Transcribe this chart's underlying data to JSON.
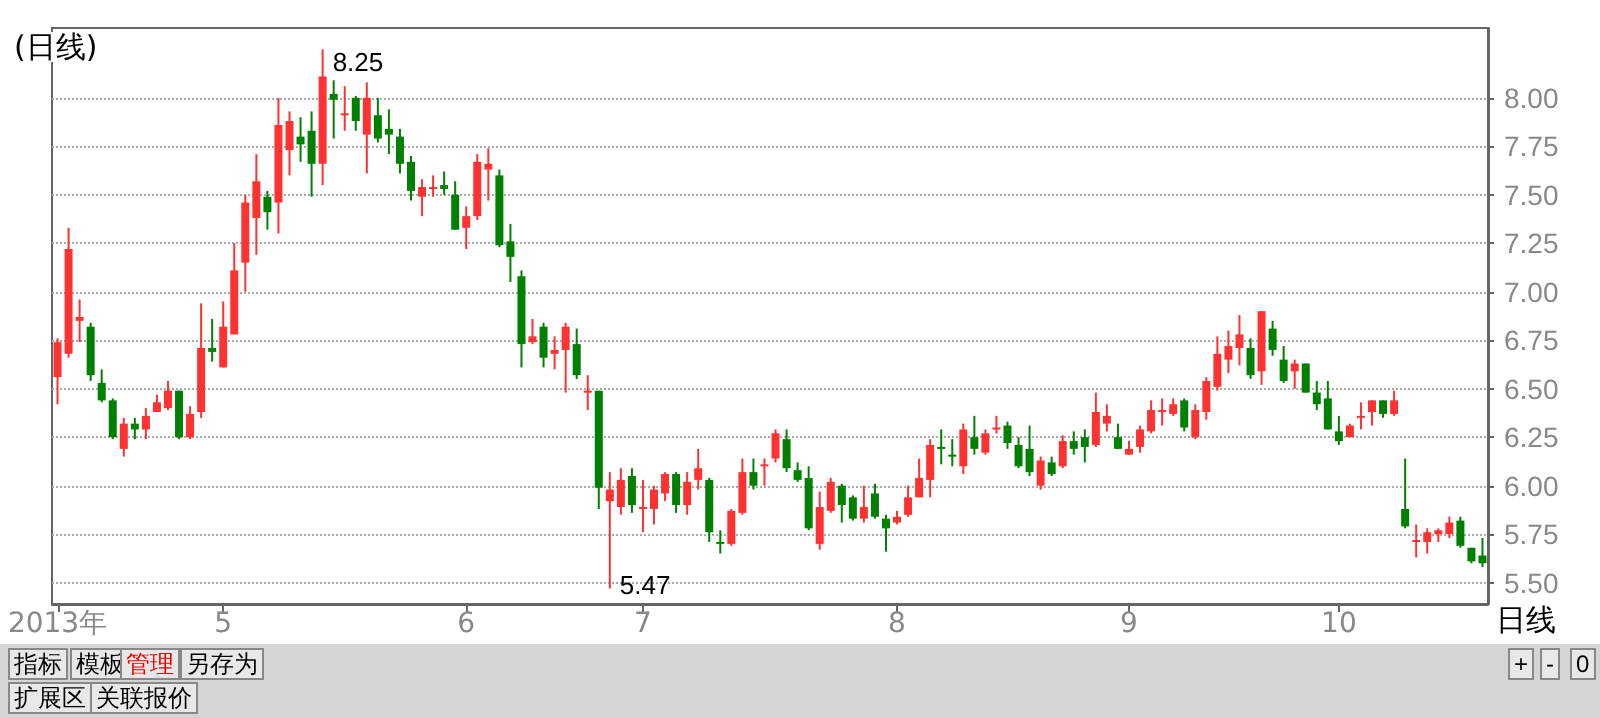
{
  "chart_data": {
    "type": "candlestick",
    "title": "(日线)",
    "categories": [
      "2013年",
      null,
      null,
      null,
      null,
      null,
      null,
      null,
      null,
      null,
      null,
      null,
      null,
      null,
      null,
      "5",
      null,
      null,
      null,
      null,
      null,
      null,
      null,
      null,
      null,
      null,
      null,
      null,
      null,
      null,
      null,
      null,
      null,
      null,
      null,
      null,
      null,
      "6",
      null,
      null,
      null,
      null,
      null,
      null,
      null,
      null,
      null,
      null,
      null,
      null,
      null,
      null,
      null,
      "7",
      null,
      null,
      null,
      null,
      null,
      null,
      null,
      null,
      null,
      null,
      null,
      null,
      null,
      null,
      null,
      null,
      null,
      null,
      null,
      null,
      null,
      null,
      "8",
      null,
      null,
      null,
      null,
      null,
      null,
      null,
      null,
      null,
      null,
      null,
      null,
      null,
      null,
      null,
      null,
      null,
      null,
      null,
      null,
      "9",
      null,
      null,
      null,
      null,
      null,
      null,
      null,
      null,
      null,
      null,
      null,
      null,
      null,
      null,
      null,
      null,
      null,
      null,
      "10",
      null,
      null,
      null,
      null,
      null,
      null,
      null,
      null,
      null,
      null,
      null,
      null,
      null
    ],
    "ohlc": [
      [
        6.56,
        6.76,
        6.42,
        6.74
      ],
      [
        6.68,
        7.33,
        6.66,
        7.22
      ],
      [
        6.85,
        6.96,
        6.74,
        6.87
      ],
      [
        6.82,
        6.84,
        6.54,
        6.57
      ],
      [
        6.53,
        6.6,
        6.43,
        6.44
      ],
      [
        6.44,
        6.45,
        6.24,
        6.25
      ],
      [
        6.19,
        6.35,
        6.15,
        6.32
      ],
      [
        6.32,
        6.35,
        6.24,
        6.29
      ],
      [
        6.29,
        6.4,
        6.24,
        6.36
      ],
      [
        6.38,
        6.47,
        6.38,
        6.43
      ],
      [
        6.4,
        6.54,
        6.39,
        6.49
      ],
      [
        6.49,
        6.49,
        6.24,
        6.25
      ],
      [
        6.25,
        6.41,
        6.24,
        6.37
      ],
      [
        6.38,
        6.94,
        6.35,
        6.71
      ],
      [
        6.71,
        6.86,
        6.64,
        6.69
      ],
      [
        6.61,
        6.95,
        6.61,
        6.82
      ],
      [
        6.78,
        7.25,
        6.78,
        7.11
      ],
      [
        7.15,
        7.5,
        7.0,
        7.46
      ],
      [
        7.38,
        7.71,
        7.19,
        7.57
      ],
      [
        7.49,
        7.52,
        7.32,
        7.41
      ],
      [
        7.46,
        8.0,
        7.3,
        7.86
      ],
      [
        7.73,
        7.93,
        7.6,
        7.88
      ],
      [
        7.8,
        7.9,
        7.67,
        7.76
      ],
      [
        7.83,
        7.93,
        7.49,
        7.66
      ],
      [
        7.66,
        8.25,
        7.55,
        8.11
      ],
      [
        8.02,
        8.09,
        7.79,
        7.99
      ],
      [
        7.91,
        8.06,
        7.83,
        7.92
      ],
      [
        8.0,
        8.01,
        7.83,
        7.88
      ],
      [
        7.81,
        8.08,
        7.61,
        8.0
      ],
      [
        7.91,
        8.0,
        7.77,
        7.79
      ],
      [
        7.84,
        7.94,
        7.71,
        7.81
      ],
      [
        7.8,
        7.84,
        7.61,
        7.66
      ],
      [
        7.67,
        7.7,
        7.47,
        7.52
      ],
      [
        7.49,
        7.58,
        7.39,
        7.54
      ],
      [
        7.53,
        7.6,
        7.49,
        7.54
      ],
      [
        7.55,
        7.62,
        7.5,
        7.53
      ],
      [
        7.5,
        7.57,
        7.32,
        7.32
      ],
      [
        7.33,
        7.44,
        7.22,
        7.39
      ],
      [
        7.39,
        7.71,
        7.37,
        7.67
      ],
      [
        7.63,
        7.74,
        7.47,
        7.66
      ],
      [
        7.6,
        7.63,
        7.23,
        7.24
      ],
      [
        7.26,
        7.35,
        7.05,
        7.18
      ],
      [
        7.08,
        7.11,
        6.61,
        6.73
      ],
      [
        6.74,
        6.86,
        6.73,
        6.77
      ],
      [
        6.82,
        6.84,
        6.61,
        6.66
      ],
      [
        6.68,
        6.77,
        6.6,
        6.7
      ],
      [
        6.7,
        6.84,
        6.48,
        6.82
      ],
      [
        6.73,
        6.81,
        6.55,
        6.57
      ],
      [
        6.49,
        6.57,
        6.39,
        6.49
      ],
      [
        6.49,
        6.49,
        5.88,
        5.99
      ],
      [
        5.92,
        6.07,
        5.47,
        5.98
      ],
      [
        5.89,
        6.09,
        5.85,
        6.03
      ],
      [
        6.05,
        6.09,
        5.86,
        5.9
      ],
      [
        5.89,
        6.03,
        5.76,
        5.89
      ],
      [
        5.88,
        6.0,
        5.8,
        5.98
      ],
      [
        5.96,
        6.07,
        5.92,
        6.06
      ],
      [
        6.06,
        6.07,
        5.86,
        5.9
      ],
      [
        5.9,
        6.07,
        5.85,
        6.02
      ],
      [
        6.03,
        6.19,
        5.98,
        6.09
      ],
      [
        6.03,
        6.04,
        5.71,
        5.76
      ],
      [
        5.71,
        5.77,
        5.65,
        5.7
      ],
      [
        5.7,
        5.88,
        5.69,
        5.87
      ],
      [
        5.86,
        6.14,
        5.85,
        6.07
      ],
      [
        6.07,
        6.14,
        5.98,
        6.0
      ],
      [
        6.1,
        6.14,
        6.0,
        6.11
      ],
      [
        6.14,
        6.29,
        6.12,
        6.27
      ],
      [
        6.24,
        6.29,
        6.07,
        6.09
      ],
      [
        6.08,
        6.12,
        6.02,
        6.03
      ],
      [
        6.04,
        6.1,
        5.77,
        5.78
      ],
      [
        5.7,
        5.97,
        5.67,
        5.89
      ],
      [
        5.87,
        6.04,
        5.86,
        6.02
      ],
      [
        6.0,
        6.01,
        5.81,
        5.9
      ],
      [
        5.94,
        5.95,
        5.82,
        5.83
      ],
      [
        5.83,
        6.0,
        5.81,
        5.89
      ],
      [
        5.96,
        6.01,
        5.83,
        5.84
      ],
      [
        5.83,
        5.85,
        5.66,
        5.78
      ],
      [
        5.81,
        5.87,
        5.8,
        5.84
      ],
      [
        5.85,
        6.0,
        5.84,
        5.94
      ],
      [
        5.94,
        6.14,
        5.94,
        6.04
      ],
      [
        6.03,
        6.24,
        5.94,
        6.21
      ],
      [
        6.2,
        6.29,
        6.11,
        6.19
      ],
      [
        6.16,
        6.24,
        6.1,
        6.15
      ],
      [
        6.1,
        6.32,
        6.06,
        6.29
      ],
      [
        6.25,
        6.36,
        6.16,
        6.19
      ],
      [
        6.17,
        6.29,
        6.16,
        6.27
      ],
      [
        6.3,
        6.36,
        6.27,
        6.3
      ],
      [
        6.31,
        6.33,
        6.19,
        6.22
      ],
      [
        6.21,
        6.25,
        6.09,
        6.1
      ],
      [
        6.19,
        6.31,
        6.05,
        6.07
      ],
      [
        6.0,
        6.15,
        5.98,
        6.13
      ],
      [
        6.12,
        6.15,
        6.05,
        6.06
      ],
      [
        6.1,
        6.26,
        6.09,
        6.23
      ],
      [
        6.23,
        6.28,
        6.16,
        6.19
      ],
      [
        6.25,
        6.29,
        6.12,
        6.2
      ],
      [
        6.21,
        6.48,
        6.2,
        6.38
      ],
      [
        6.32,
        6.42,
        6.28,
        6.36
      ],
      [
        6.25,
        6.32,
        6.19,
        6.19
      ],
      [
        6.16,
        6.23,
        6.16,
        6.19
      ],
      [
        6.2,
        6.31,
        6.17,
        6.29
      ],
      [
        6.28,
        6.44,
        6.27,
        6.39
      ],
      [
        6.39,
        6.45,
        6.31,
        6.39
      ],
      [
        6.37,
        6.45,
        6.36,
        6.42
      ],
      [
        6.44,
        6.45,
        6.28,
        6.3
      ],
      [
        6.25,
        6.42,
        6.24,
        6.39
      ],
      [
        6.38,
        6.56,
        6.34,
        6.54
      ],
      [
        6.51,
        6.77,
        6.49,
        6.68
      ],
      [
        6.65,
        6.8,
        6.58,
        6.72
      ],
      [
        6.71,
        6.88,
        6.62,
        6.78
      ],
      [
        6.71,
        6.76,
        6.55,
        6.57
      ],
      [
        6.59,
        6.9,
        6.52,
        6.9
      ],
      [
        6.81,
        6.85,
        6.67,
        6.7
      ],
      [
        6.65,
        6.72,
        6.53,
        6.54
      ],
      [
        6.59,
        6.65,
        6.5,
        6.63
      ],
      [
        6.63,
        6.63,
        6.48,
        6.48
      ],
      [
        6.48,
        6.54,
        6.39,
        6.42
      ],
      [
        6.45,
        6.54,
        6.29,
        6.29
      ],
      [
        6.28,
        6.36,
        6.21,
        6.23
      ],
      [
        6.25,
        6.32,
        6.25,
        6.31
      ],
      [
        6.36,
        6.43,
        6.29,
        6.36
      ],
      [
        6.38,
        6.44,
        6.31,
        6.44
      ],
      [
        6.44,
        6.44,
        6.35,
        6.37
      ],
      [
        6.37,
        6.49,
        6.36,
        6.44
      ],
      [
        5.88,
        6.14,
        5.78,
        5.79
      ],
      [
        5.71,
        5.8,
        5.63,
        5.72
      ],
      [
        5.71,
        5.78,
        5.65,
        5.76
      ],
      [
        5.75,
        5.78,
        5.71,
        5.77
      ],
      [
        5.75,
        5.84,
        5.73,
        5.81
      ],
      [
        5.82,
        5.84,
        5.68,
        5.69
      ],
      [
        5.68,
        5.68,
        5.6,
        5.61
      ],
      [
        5.64,
        5.73,
        5.58,
        5.6
      ]
    ],
    "ylim": [
      5.39,
      8.36
    ],
    "yticks": [
      {
        "value": 5.5,
        "label": "5.50"
      },
      {
        "value": 5.75,
        "label": "5.75"
      },
      {
        "value": 6,
        "label": "6.00"
      },
      {
        "value": 6.25,
        "label": "6.25"
      },
      {
        "value": 6.5,
        "label": "6.50"
      },
      {
        "value": 6.75,
        "label": "6.75"
      },
      {
        "value": 7,
        "label": "7.00"
      },
      {
        "value": 7.25,
        "label": "7.25"
      },
      {
        "value": 7.5,
        "label": "7.50"
      },
      {
        "value": 7.75,
        "label": "7.75"
      },
      {
        "value": 8,
        "label": "8.00"
      }
    ],
    "grid": "y",
    "annotations": [
      "8.25",
      "5.47",
      "指标",
      "模板",
      "管理",
      "另存为",
      "扩展区",
      "关联报价",
      "日线",
      "+",
      "-",
      "0"
    ]
  }
}
